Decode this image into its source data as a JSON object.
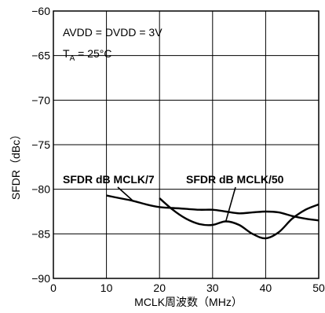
{
  "chart_data": {
    "type": "line",
    "title": "",
    "xlabel": "MCLK周波数（MHz）",
    "ylabel": "SFDR（dBc）",
    "xlim": [
      0,
      50
    ],
    "ylim": [
      -90,
      -60
    ],
    "x_ticks": [
      "0",
      "10",
      "20",
      "30",
      "40",
      "50"
    ],
    "y_ticks": [
      "−90",
      "−85",
      "−80",
      "−75",
      "−70",
      "−65",
      "−60"
    ],
    "grid": true,
    "conditions": {
      "line1": "AVDD = DVDD = 3V",
      "line2_prefix": "T",
      "line2_sub": "A",
      "line2_suffix": " = 25°C"
    },
    "series": [
      {
        "name": "SFDR dB MCLK/7",
        "x": [
          10,
          12.5,
          15,
          17.5,
          20,
          22.5,
          25,
          27.5,
          30,
          32.5,
          35,
          37.5,
          40,
          42.5,
          45,
          47.5,
          50
        ],
        "y": [
          -80.7,
          -81.0,
          -81.3,
          -81.7,
          -82.0,
          -82.1,
          -82.2,
          -82.3,
          -82.3,
          -82.5,
          -82.7,
          -82.6,
          -82.5,
          -82.6,
          -83.0,
          -83.3,
          -83.5
        ]
      },
      {
        "name": "SFDR dB MCLK/50",
        "x": [
          20,
          22.5,
          25,
          27.5,
          30,
          32.5,
          35,
          37.5,
          40,
          42.5,
          45,
          47.5,
          50
        ],
        "y": [
          -81.0,
          -82.3,
          -83.3,
          -83.9,
          -84.0,
          -83.6,
          -84.0,
          -85.0,
          -85.5,
          -84.8,
          -83.3,
          -82.3,
          -81.7
        ]
      }
    ]
  }
}
